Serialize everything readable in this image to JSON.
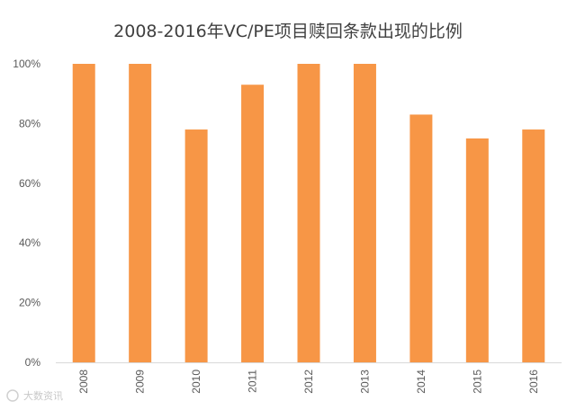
{
  "chart_data": {
    "type": "bar",
    "title": "2008-2016年VC/PE项目赎回条款出现的比例",
    "xlabel": "",
    "ylabel": "",
    "categories": [
      "2008",
      "2009",
      "2010",
      "2011",
      "2012",
      "2013",
      "2014",
      "2015",
      "2016"
    ],
    "values": [
      100,
      100,
      78,
      93,
      100,
      100,
      83,
      75,
      78
    ],
    "ylim": [
      0,
      100
    ],
    "yticks": [
      0,
      20,
      40,
      60,
      80,
      100
    ],
    "ytick_labels": [
      "0%",
      "20%",
      "40%",
      "60%",
      "80%",
      "100%"
    ],
    "grid": false,
    "legend": "none",
    "bar_color": "#F79646"
  },
  "watermark": "大数资讯"
}
